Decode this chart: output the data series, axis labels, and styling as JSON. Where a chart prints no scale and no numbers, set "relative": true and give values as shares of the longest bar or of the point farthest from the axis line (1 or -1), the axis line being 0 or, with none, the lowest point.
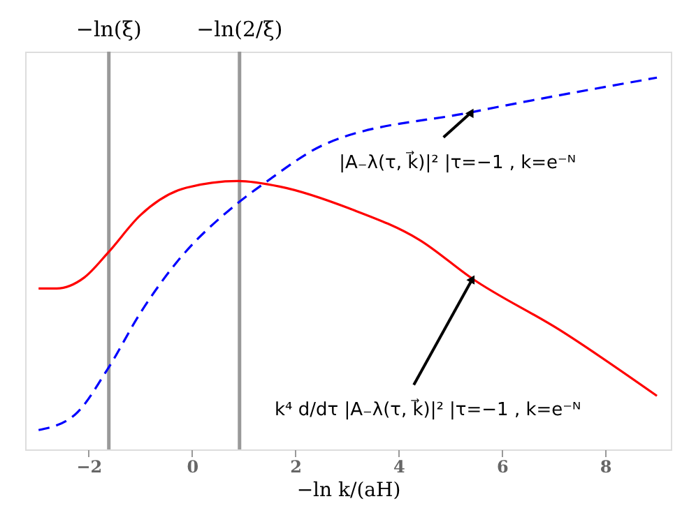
{
  "chart_data": {
    "type": "line",
    "relative": true,
    "xlabel": "−ln k/(aH)",
    "xlim": [
      -3.23,
      9.27
    ],
    "xticks": [
      -2,
      0,
      2,
      4,
      6,
      8
    ],
    "grid": false,
    "marker": "none",
    "series": [
      {
        "color": "#ff0000",
        "line_style": "solid",
        "x": [
          -2.97,
          -2.62,
          -2.08,
          -1.62,
          -1.0,
          -0.11,
          0.89,
          1.7,
          3.05,
          4.41,
          5.43,
          7.11,
          9.0
        ],
        "values": [
          0.433,
          0.433,
          0.463,
          0.53,
          0.63,
          0.704,
          0.722,
          0.707,
          0.648,
          0.563,
          0.459,
          0.322,
          0.144
        ]
      },
      {
        "color": "#0000ff",
        "line_style": "dashed",
        "x": [
          -2.97,
          -2.27,
          -1.62,
          -1.0,
          -0.38,
          0.89,
          1.43,
          2.59,
          5.41,
          9.0
        ],
        "values": [
          0.052,
          0.093,
          0.219,
          0.367,
          0.489,
          0.663,
          0.719,
          0.822,
          0.907,
          1.0
        ]
      }
    ],
    "ref_lines": [
      {
        "axis": "x",
        "value": -1.61,
        "label": "−ln(ξ)",
        "color": "#999999"
      },
      {
        "axis": "x",
        "value": 0.92,
        "label": "−ln(2/ξ)",
        "color": "#999999"
      }
    ],
    "annotations": [
      {
        "text": "|A₋λ(τ, k⃗)|² |τ=−1 , k=e⁻ᴺ",
        "x": 5.41,
        "y": 0.907
      },
      {
        "text": "k⁴ d/dτ |A₋λ(τ, k⃗)|² |τ=−1 , k=e⁻ᴺ",
        "x": 5.43,
        "y": 0.459
      }
    ]
  }
}
